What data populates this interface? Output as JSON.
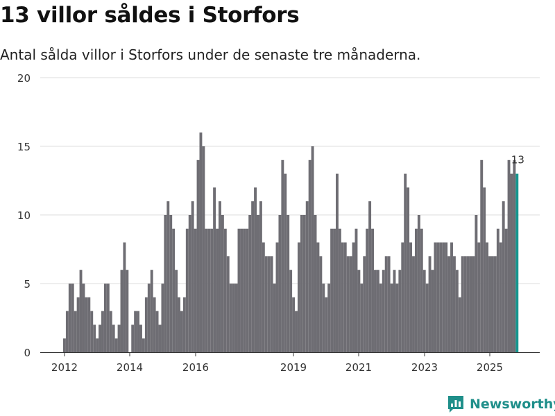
{
  "header": {
    "title": "13 villor såldes i Storfors",
    "subtitle": "Antal sålda villor i Storfors under de senaste tre månaderna."
  },
  "brand": {
    "name": "Newsworthy",
    "icon": "newsworthy-logo-icon",
    "color": "#1f8f8a"
  },
  "chart_data": {
    "type": "bar",
    "title": "13 villor såldes i Storfors",
    "subtitle": "Antal sålda villor i Storfors under de senaste tre månaderna.",
    "xlabel": "",
    "ylabel": "",
    "ylim": [
      0,
      20
    ],
    "yticks": [
      "0",
      "5",
      "10",
      "15",
      "20"
    ],
    "xticks": [
      "2012",
      "2014",
      "2016",
      "2019",
      "2021",
      "2023",
      "2025"
    ],
    "grid": true,
    "bar_color": "#6e6d73",
    "highlight_color": "#16968f",
    "annotation": {
      "label": "13",
      "value": 13
    },
    "values": [
      1,
      3,
      5,
      5,
      3,
      4,
      6,
      5,
      4,
      4,
      3,
      2,
      1,
      2,
      3,
      5,
      5,
      3,
      2,
      1,
      2,
      6,
      8,
      6,
      0,
      2,
      3,
      3,
      2,
      1,
      4,
      5,
      6,
      4,
      3,
      2,
      5,
      10,
      11,
      10,
      9,
      6,
      4,
      3,
      4,
      9,
      10,
      11,
      9,
      14,
      16,
      15,
      9,
      9,
      9,
      12,
      9,
      11,
      10,
      9,
      7,
      5,
      5,
      5,
      9,
      9,
      9,
      9,
      10,
      11,
      12,
      10,
      11,
      8,
      7,
      7,
      7,
      5,
      8,
      10,
      14,
      13,
      10,
      6,
      4,
      3,
      8,
      10,
      10,
      11,
      14,
      15,
      10,
      8,
      7,
      5,
      4,
      5,
      9,
      9,
      13,
      9,
      8,
      8,
      7,
      7,
      8,
      9,
      6,
      5,
      7,
      9,
      11,
      9,
      6,
      6,
      5,
      6,
      7,
      7,
      5,
      6,
      5,
      6,
      8,
      13,
      12,
      8,
      7,
      9,
      10,
      9,
      6,
      5,
      7,
      6,
      8,
      8,
      8,
      8,
      8,
      7,
      8,
      7,
      6,
      4,
      7,
      7,
      7,
      7,
      7,
      10,
      8,
      14,
      12,
      8,
      7,
      7,
      7,
      9,
      8,
      11,
      9,
      14,
      13,
      14,
      13
    ]
  }
}
